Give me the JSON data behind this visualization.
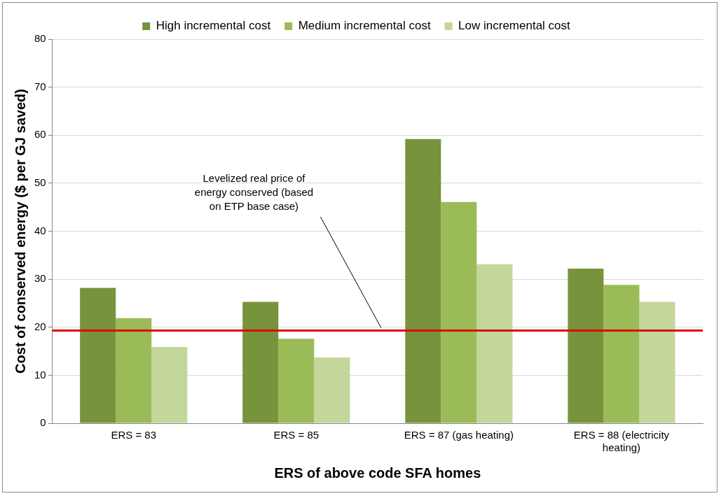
{
  "chart_data": {
    "type": "bar",
    "xlabel": "ERS of above code SFA homes",
    "ylabel": "Cost of conserved energy ($ per GJ saved)",
    "categories": [
      "ERS = 83",
      "ERS = 85",
      "ERS = 87 (gas heating)",
      "ERS = 88 (electricity heating)"
    ],
    "series": [
      {
        "name": "High incremental cost",
        "color": "#77933c",
        "values": [
          28.2,
          25.3,
          59.2,
          32.2
        ]
      },
      {
        "name": "Medium incremental cost",
        "color": "#9bbb59",
        "values": [
          21.9,
          17.6,
          46.1,
          28.8
        ]
      },
      {
        "name": "Low incremental cost",
        "color": "#c3d69b",
        "values": [
          15.9,
          13.7,
          33.1,
          25.3
        ]
      }
    ],
    "ylim": [
      0,
      80
    ],
    "yticks": [
      0,
      10,
      20,
      30,
      40,
      50,
      60,
      70,
      80
    ],
    "grid": "y",
    "legend": "top",
    "ref_lines": [
      {
        "axis": "y",
        "value": 19.3,
        "label": "Levelized real price of energy conserved (based on ETP base case)",
        "color": "#e00000",
        "line_style": "solid"
      }
    ]
  }
}
